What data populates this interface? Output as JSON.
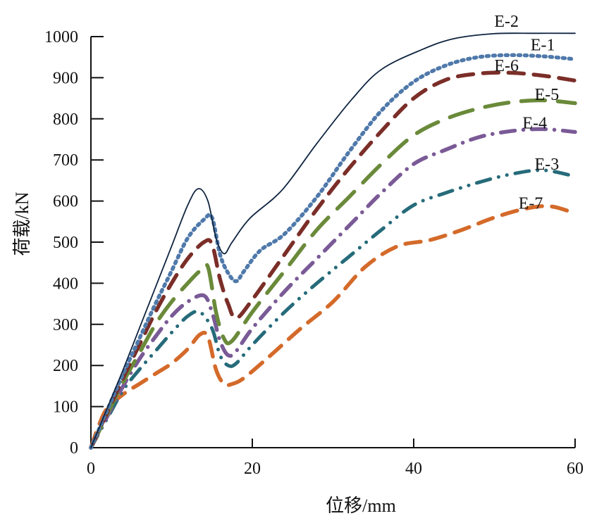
{
  "chart_data": {
    "type": "line",
    "title": "",
    "xlabel": "位移/mm",
    "ylabel": "荷载/kN",
    "xlim": [
      0,
      60
    ],
    "ylim": [
      0,
      1000
    ],
    "xticks": [
      0,
      20,
      40,
      60
    ],
    "yticks": [
      0,
      100,
      200,
      300,
      400,
      500,
      600,
      700,
      800,
      900,
      1000
    ],
    "grid": false,
    "legend": "inline labels at curve ends",
    "series": [
      {
        "name": "E-2",
        "color": "#0f2440",
        "style": "solid",
        "x": [
          0,
          2,
          4,
          6,
          8,
          10,
          12,
          13.3,
          14.5,
          15.5,
          16.5,
          17.5,
          19.7,
          23.7,
          28,
          32.4,
          36,
          41.1,
          45,
          49.9,
          55,
          60
        ],
        "y": [
          0,
          95,
          190,
          290,
          390,
          490,
          590,
          630,
          600,
          510,
          472,
          500,
          558,
          627,
          740,
          849,
          920,
          969,
          995,
          1007,
          1008,
          1008
        ]
      },
      {
        "name": "E-1",
        "color": "#4f79aa",
        "style": "dotted",
        "x": [
          0,
          2,
          4,
          6,
          8,
          10,
          12,
          14,
          15,
          16,
          17,
          18,
          19,
          21,
          24,
          28,
          32,
          36,
          40,
          44,
          48,
          52,
          56,
          60
        ],
        "y": [
          0,
          90,
          180,
          265,
          350,
          430,
          510,
          555,
          560,
          470,
          425,
          405,
          430,
          480,
          520,
          610,
          720,
          820,
          890,
          930,
          950,
          955,
          952,
          945
        ]
      },
      {
        "name": "E-6",
        "color": "#7b2e28",
        "style": "dashed",
        "x": [
          0,
          2,
          4,
          6,
          8,
          10,
          12,
          14,
          15,
          16,
          17,
          18,
          20,
          24,
          28,
          32,
          36,
          40,
          44,
          48,
          52,
          56,
          60
        ],
        "y": [
          0,
          85,
          170,
          250,
          330,
          400,
          460,
          500,
          495,
          410,
          350,
          315,
          360,
          470,
          580,
          680,
          770,
          850,
          895,
          910,
          912,
          905,
          893
        ]
      },
      {
        "name": "E-5",
        "color": "#6a8a3a",
        "style": "long-dash",
        "x": [
          0,
          2,
          4,
          6,
          8,
          10,
          12,
          13.5,
          14.5,
          15.5,
          16.5,
          17.5,
          20,
          24,
          28,
          32,
          36,
          40,
          44,
          48,
          52,
          56,
          60
        ],
        "y": [
          0,
          80,
          160,
          230,
          300,
          355,
          400,
          430,
          440,
          330,
          265,
          260,
          330,
          430,
          530,
          610,
          690,
          760,
          800,
          825,
          840,
          845,
          838
        ]
      },
      {
        "name": "E-4",
        "color": "#7a5a96",
        "style": "dash-dot",
        "x": [
          0,
          2,
          4,
          6,
          8,
          10,
          12,
          14,
          15,
          16,
          17,
          18,
          20,
          24,
          28,
          32,
          36,
          40,
          44,
          48,
          52,
          56,
          60
        ],
        "y": [
          0,
          75,
          150,
          215,
          270,
          320,
          355,
          370,
          330,
          260,
          225,
          235,
          290,
          380,
          460,
          540,
          620,
          690,
          725,
          755,
          770,
          775,
          768
        ]
      },
      {
        "name": "E-3",
        "color": "#266b7a",
        "style": "dash-dot-dot",
        "x": [
          0,
          2,
          4,
          6,
          8,
          10,
          12,
          13.5,
          15,
          16,
          17,
          18,
          20,
          24,
          28,
          32,
          36,
          40,
          44,
          48,
          52,
          56,
          60
        ],
        "y": [
          0,
          70,
          140,
          190,
          235,
          280,
          320,
          330,
          290,
          225,
          200,
          205,
          250,
          330,
          400,
          465,
          530,
          590,
          620,
          645,
          665,
          675,
          660
        ]
      },
      {
        "name": "E-7",
        "color": "#d46a2a",
        "style": "dashed",
        "x": [
          0,
          1,
          2,
          4,
          6,
          8,
          10,
          12,
          13.5,
          14.5,
          15.5,
          16.5,
          17.5,
          19,
          22,
          26,
          30,
          34,
          38,
          42,
          46,
          50,
          54,
          57,
          60
        ],
        "y": [
          0,
          55,
          95,
          130,
          155,
          180,
          205,
          240,
          275,
          270,
          190,
          155,
          155,
          170,
          220,
          290,
          355,
          440,
          490,
          505,
          530,
          560,
          582,
          587,
          570
        ]
      }
    ],
    "annotations": [
      {
        "text": "E-2",
        "x": 51.5,
        "y": 1038
      },
      {
        "text": "E-1",
        "x": 56,
        "y": 980
      },
      {
        "text": "E-6",
        "x": 51.5,
        "y": 930
      },
      {
        "text": "E-5",
        "x": 56.5,
        "y": 860
      },
      {
        "text": "E-4",
        "x": 55,
        "y": 790
      },
      {
        "text": "E-3",
        "x": 56.5,
        "y": 690
      },
      {
        "text": "E-7",
        "x": 54.5,
        "y": 595
      }
    ]
  }
}
